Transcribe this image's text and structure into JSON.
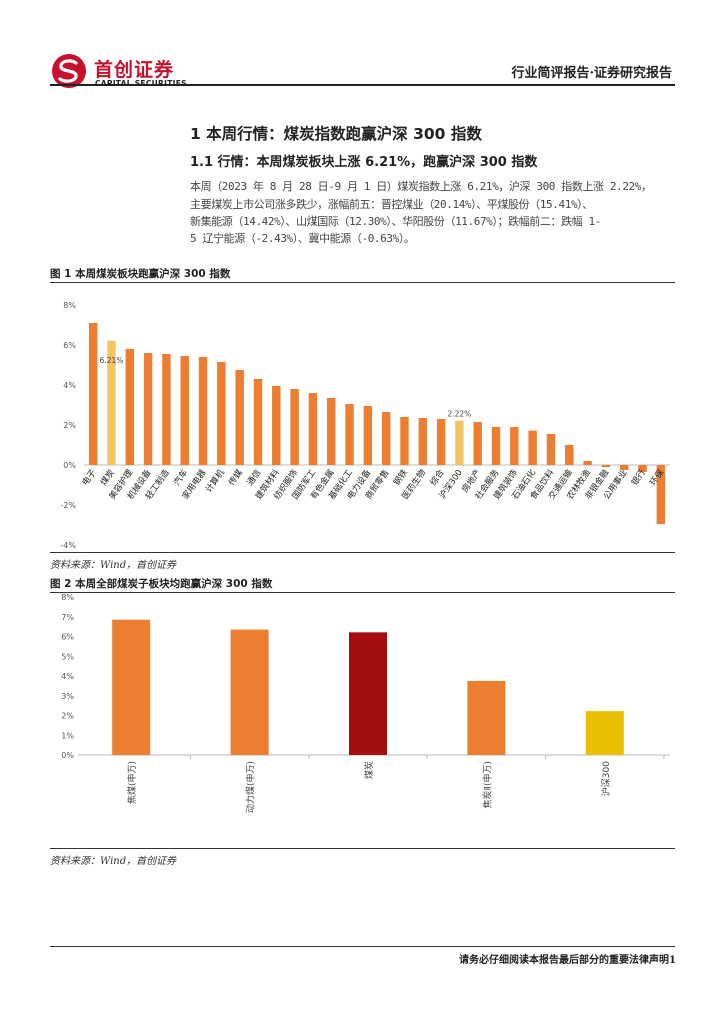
{
  "header": {
    "logo_cn": "首创证券",
    "logo_en": "CAPITAL SECURITIES",
    "report_type": "行业简评报告·证券研究报告"
  },
  "section": {
    "title": "1 本周行情：煤炭指数跑赢沪深 300 指数",
    "subtitle": "1.1 行情：本周煤炭板块上涨 6.21%，跑赢沪深 300 指数",
    "body_lines": [
      "本周（2023 年 8 月 28 日-9 月 1 日）煤炭指数上涨 6.21%，沪深 300 指数上涨 2.22%，",
      "主要煤炭上市公司涨多跌少，涨幅前五：晋控煤业（20.14%）、平煤股份（15.41%）、",
      "新集能源（14.42%）、山煤国际（12.30%）、华阳股份（11.67%）；跌幅前二：跌幅 1-",
      "5 辽宁能源（-2.43%）、冀中能源（-0.63%）。"
    ]
  },
  "figure1": {
    "title": "图 1 本周煤炭板块跑赢沪深 300 指数",
    "source": "资料来源：Wind，首创证券"
  },
  "figure2": {
    "title": "图 2 本周全部煤炭子板块均跑赢沪深 300 指数",
    "source": "资料来源：Wind，首创证券"
  },
  "footer": {
    "text": "请务必仔细阅读本报告最后部分的重要法律声明1"
  },
  "colors": {
    "orange": "#ED7D31",
    "yellow": "#F4C563",
    "dark_red": "#A50E0E",
    "gold": "#EABF00",
    "brand_red": "#C8102E"
  },
  "chart_data": [
    {
      "type": "bar",
      "categories": [
        "电子",
        "煤炭",
        "美容护理",
        "机械设备",
        "轻工制造",
        "汽车",
        "家用电器",
        "计算机",
        "传媒",
        "通信",
        "建筑材料",
        "纺织服饰",
        "国防军工",
        "有色金属",
        "基础化工",
        "电力设备",
        "商贸零售",
        "钢铁",
        "医药生物",
        "综合",
        "沪深300",
        "房地产",
        "社会服务",
        "建筑装饰",
        "石油石化",
        "食品饮料",
        "交通运输",
        "农林牧渔",
        "非银金融",
        "公用事业",
        "银行",
        "环保"
      ],
      "values": [
        7.1,
        6.21,
        5.8,
        5.6,
        5.55,
        5.45,
        5.4,
        5.15,
        4.75,
        4.3,
        3.95,
        3.8,
        3.6,
        3.35,
        3.05,
        2.95,
        2.65,
        2.4,
        2.35,
        2.3,
        2.22,
        2.15,
        1.9,
        1.9,
        1.72,
        1.55,
        1.0,
        0.2,
        -0.1,
        -0.25,
        -0.35,
        -2.95
      ],
      "highlight": [
        "煤炭",
        "沪深300"
      ],
      "data_labels": [
        {
          "category": "煤炭",
          "label": "6.21%"
        },
        {
          "category": "沪深300",
          "label": "2.22%"
        }
      ],
      "ylim": [
        -4,
        8
      ],
      "yticks": [
        "-4%",
        "-2%",
        "0%",
        "2%",
        "4%",
        "6%",
        "8%"
      ],
      "grid": false,
      "legend": "none"
    },
    {
      "type": "bar",
      "categories": [
        "焦煤(申万)",
        "动力煤(申万)",
        "煤炭",
        "焦炭Ⅱ(申万)",
        "沪深300"
      ],
      "values": [
        6.85,
        6.35,
        6.21,
        3.75,
        2.22
      ],
      "bar_colors": [
        "#ED7D31",
        "#ED7D31",
        "#A50E0E",
        "#ED7D31",
        "#EABF00"
      ],
      "ylim": [
        0,
        8
      ],
      "yticks": [
        "0%",
        "1%",
        "2%",
        "3%",
        "4%",
        "5%",
        "6%",
        "7%",
        "8%"
      ],
      "grid": false,
      "legend": "none"
    }
  ]
}
